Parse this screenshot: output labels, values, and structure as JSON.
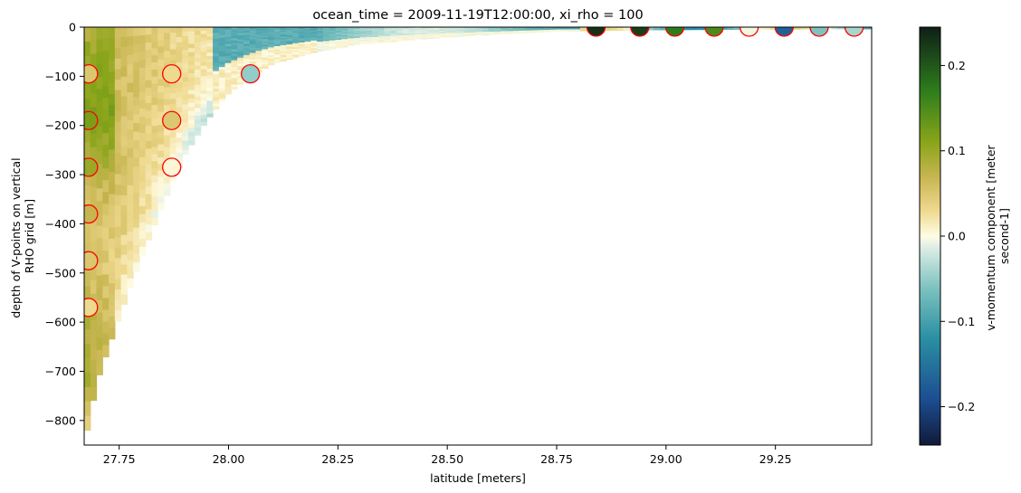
{
  "chart_data": {
    "type": "heatmap",
    "title": "ocean_time = 2009-11-19T12:00:00, xi_rho = 100",
    "xlabel": "latitude [meters]",
    "ylabel_lines": [
      "depth of V-points on vertical",
      "RHO grid [m]"
    ],
    "colorbar_label_lines": [
      "v-momentum component [meter",
      "second-1]"
    ],
    "xlim": [
      27.67,
      29.47
    ],
    "ylim": [
      -850,
      0
    ],
    "clim": [
      -0.245,
      0.245
    ],
    "colormap": "diverging navy-teal-white-olive-darkgreen",
    "colormap_stops": [
      {
        "v": -0.245,
        "color": "#111a3a"
      },
      {
        "v": -0.19,
        "color": "#1c4f93"
      },
      {
        "v": -0.12,
        "color": "#2a8fa3"
      },
      {
        "v": -0.06,
        "color": "#7fc3c0"
      },
      {
        "v": -0.015,
        "color": "#d9ece4"
      },
      {
        "v": 0.0,
        "color": "#fffce4"
      },
      {
        "v": 0.03,
        "color": "#efd98f"
      },
      {
        "v": 0.07,
        "color": "#c6b550"
      },
      {
        "v": 0.11,
        "color": "#8aa51a"
      },
      {
        "v": 0.17,
        "color": "#2e7d1c"
      },
      {
        "v": 0.245,
        "color": "#0f1f17"
      }
    ],
    "x_ticks": [
      27.75,
      28.0,
      28.25,
      28.5,
      28.75,
      29.0,
      29.25
    ],
    "x_tick_labels": [
      "27.75",
      "28.00",
      "28.25",
      "28.50",
      "28.75",
      "29.00",
      "29.25"
    ],
    "y_ticks": [
      0,
      -100,
      -200,
      -300,
      -400,
      -500,
      -600,
      -700,
      -800
    ],
    "y_tick_labels": [
      "0",
      "−100",
      "−200",
      "−300",
      "−400",
      "−500",
      "−600",
      "−700",
      "−800"
    ],
    "colorbar_ticks": [
      0.2,
      0.1,
      0.0,
      -0.1,
      -0.2
    ],
    "colorbar_tick_labels": [
      "0.2",
      "0.1",
      "0.0",
      "−0.1",
      "−0.2"
    ],
    "bathymetry_depth_profile": [
      {
        "lat": 27.67,
        "depth": 850
      },
      {
        "lat": 27.7,
        "depth": 720
      },
      {
        "lat": 27.75,
        "depth": 590
      },
      {
        "lat": 27.8,
        "depth": 470
      },
      {
        "lat": 27.85,
        "depth": 360
      },
      {
        "lat": 27.9,
        "depth": 260
      },
      {
        "lat": 27.95,
        "depth": 190
      },
      {
        "lat": 28.0,
        "depth": 135
      },
      {
        "lat": 28.05,
        "depth": 100
      },
      {
        "lat": 28.1,
        "depth": 75
      },
      {
        "lat": 28.2,
        "depth": 50
      },
      {
        "lat": 28.3,
        "depth": 35
      },
      {
        "lat": 28.5,
        "depth": 20
      },
      {
        "lat": 28.75,
        "depth": 8
      },
      {
        "lat": 29.0,
        "depth": 5
      },
      {
        "lat": 29.47,
        "depth": 3
      }
    ],
    "markers": [
      {
        "lat": 27.68,
        "depth": -95,
        "value": 0.05
      },
      {
        "lat": 27.68,
        "depth": -190,
        "value": 0.12
      },
      {
        "lat": 27.68,
        "depth": -285,
        "value": 0.1
      },
      {
        "lat": 27.68,
        "depth": -380,
        "value": 0.07
      },
      {
        "lat": 27.68,
        "depth": -475,
        "value": 0.05
      },
      {
        "lat": 27.68,
        "depth": -570,
        "value": 0.03
      },
      {
        "lat": 27.87,
        "depth": -95,
        "value": 0.03
      },
      {
        "lat": 27.87,
        "depth": -190,
        "value": 0.05
      },
      {
        "lat": 27.87,
        "depth": -285,
        "value": 0.005
      },
      {
        "lat": 28.05,
        "depth": -95,
        "value": -0.05
      },
      {
        "lat": 28.84,
        "depth": 0,
        "value": 0.23
      },
      {
        "lat": 28.94,
        "depth": 0,
        "value": 0.22
      },
      {
        "lat": 29.02,
        "depth": 0,
        "value": 0.17
      },
      {
        "lat": 29.11,
        "depth": 0,
        "value": 0.15
      },
      {
        "lat": 29.19,
        "depth": 0,
        "value": -0.005
      },
      {
        "lat": 29.27,
        "depth": 0,
        "value": -0.17
      },
      {
        "lat": 29.35,
        "depth": 0,
        "value": -0.06
      },
      {
        "lat": 29.43,
        "depth": 0,
        "value": -0.04
      }
    ],
    "marker_edge_color": "#ff0000"
  }
}
